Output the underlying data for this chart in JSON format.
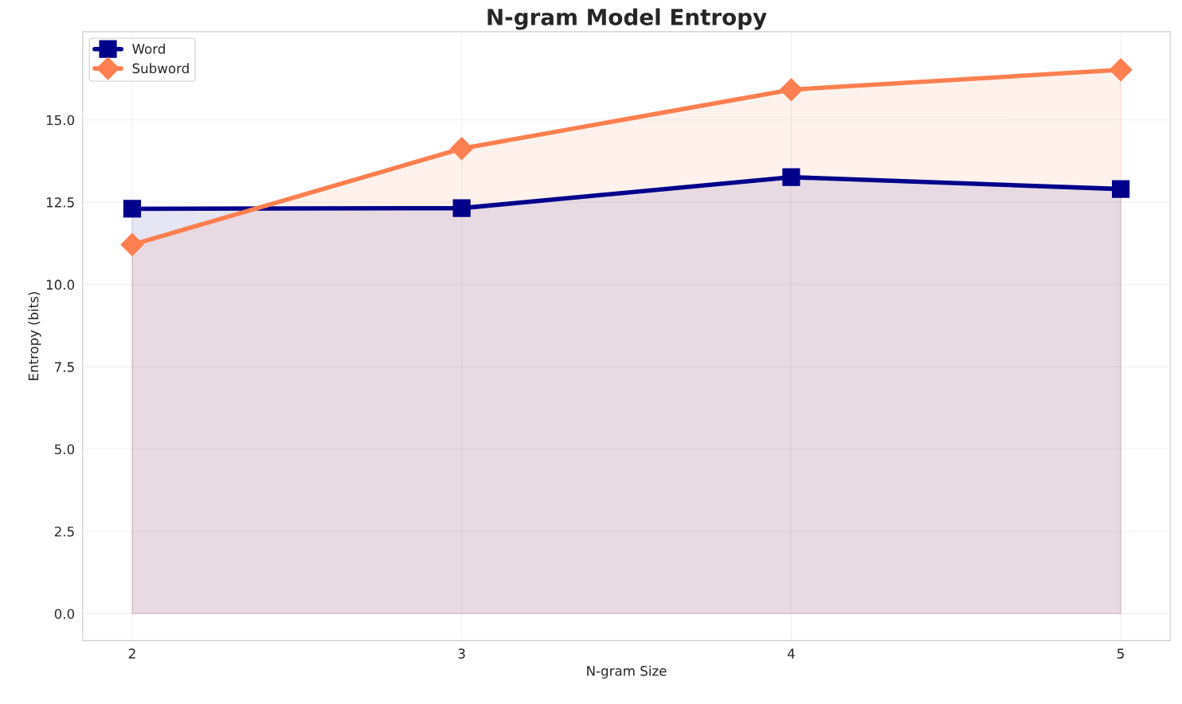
{
  "chart_data": {
    "type": "area",
    "title": "N-gram Model Entropy",
    "xlabel": "N-gram Size",
    "ylabel": "Entropy (bits)",
    "x": [
      2,
      3,
      4,
      5
    ],
    "series": [
      {
        "name": "Word",
        "color": "#00008b",
        "marker": "square",
        "values": [
          12.3,
          12.32,
          13.26,
          12.9
        ]
      },
      {
        "name": "Subword",
        "color": "#ff7f50",
        "marker": "diamond",
        "values": [
          11.21,
          14.13,
          15.92,
          16.52
        ]
      }
    ],
    "xlim": [
      1.85,
      5.15
    ],
    "xticks": [
      2,
      3,
      4,
      5
    ],
    "ylim": [
      -0.82,
      17.68
    ],
    "yticks": [
      {
        "value": 0,
        "label": "0.0"
      },
      {
        "value": 2.5,
        "label": "2.5"
      },
      {
        "value": 5,
        "label": "5.0"
      },
      {
        "value": 7.5,
        "label": "7.5"
      },
      {
        "value": 10,
        "label": "10.0"
      },
      {
        "value": 12.5,
        "label": "12.5"
      },
      {
        "value": 15,
        "label": "15.0"
      }
    ],
    "grid": true,
    "legend": "top left",
    "line_style": "solid"
  }
}
